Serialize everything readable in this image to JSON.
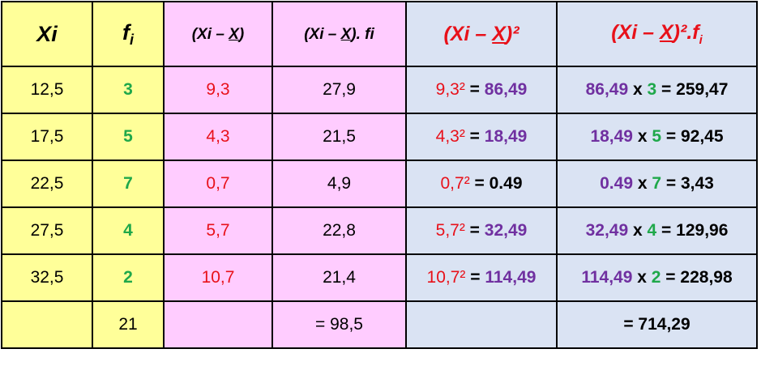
{
  "header": [
    [
      "Xi"
    ],
    [
      "f",
      "i"
    ],
    [
      "(Xi – ",
      "X",
      ")"
    ],
    [
      "(Xi – ",
      "X",
      "). fi"
    ],
    [
      "(Xi – ",
      "X",
      ")²"
    ],
    [
      "(Xi – ",
      "X",
      ")².f",
      "i"
    ]
  ],
  "rows": [
    [
      [
        "12,5"
      ],
      [
        "3"
      ],
      [
        "9,3"
      ],
      [
        "27,9"
      ],
      [
        "9,3²",
        " = ",
        "86,49"
      ],
      [
        "86,49",
        " x ",
        "3",
        " = ",
        "259,47"
      ]
    ],
    [
      [
        "17,5"
      ],
      [
        "5"
      ],
      [
        "4,3"
      ],
      [
        "21,5"
      ],
      [
        "4,3²",
        " = ",
        "18,49"
      ],
      [
        "18,49",
        " x ",
        "5",
        " = ",
        "92,45"
      ]
    ],
    [
      [
        "22,5"
      ],
      [
        "7"
      ],
      [
        "0,7"
      ],
      [
        "4,9"
      ],
      [
        "0,7²",
        " = 0.49"
      ],
      [
        "0.49",
        " x ",
        "7",
        " = ",
        "3,43"
      ]
    ],
    [
      [
        "27,5"
      ],
      [
        "4"
      ],
      [
        "5,7"
      ],
      [
        "22,8"
      ],
      [
        "5,7²",
        " = ",
        "32,49"
      ],
      [
        "32,49",
        " x ",
        "4",
        " = ",
        "129,96"
      ]
    ],
    [
      [
        "32,5"
      ],
      [
        "2"
      ],
      [
        "10,7"
      ],
      [
        "21,4"
      ],
      [
        "10,7²",
        " = ",
        "114,49"
      ],
      [
        "114,49",
        " x ",
        "2",
        " = ",
        "228,98"
      ]
    ]
  ],
  "totals": {
    "fi": "21",
    "sum_fi": "= 98,5",
    "sum_sq_fi": "= 714,29"
  }
}
